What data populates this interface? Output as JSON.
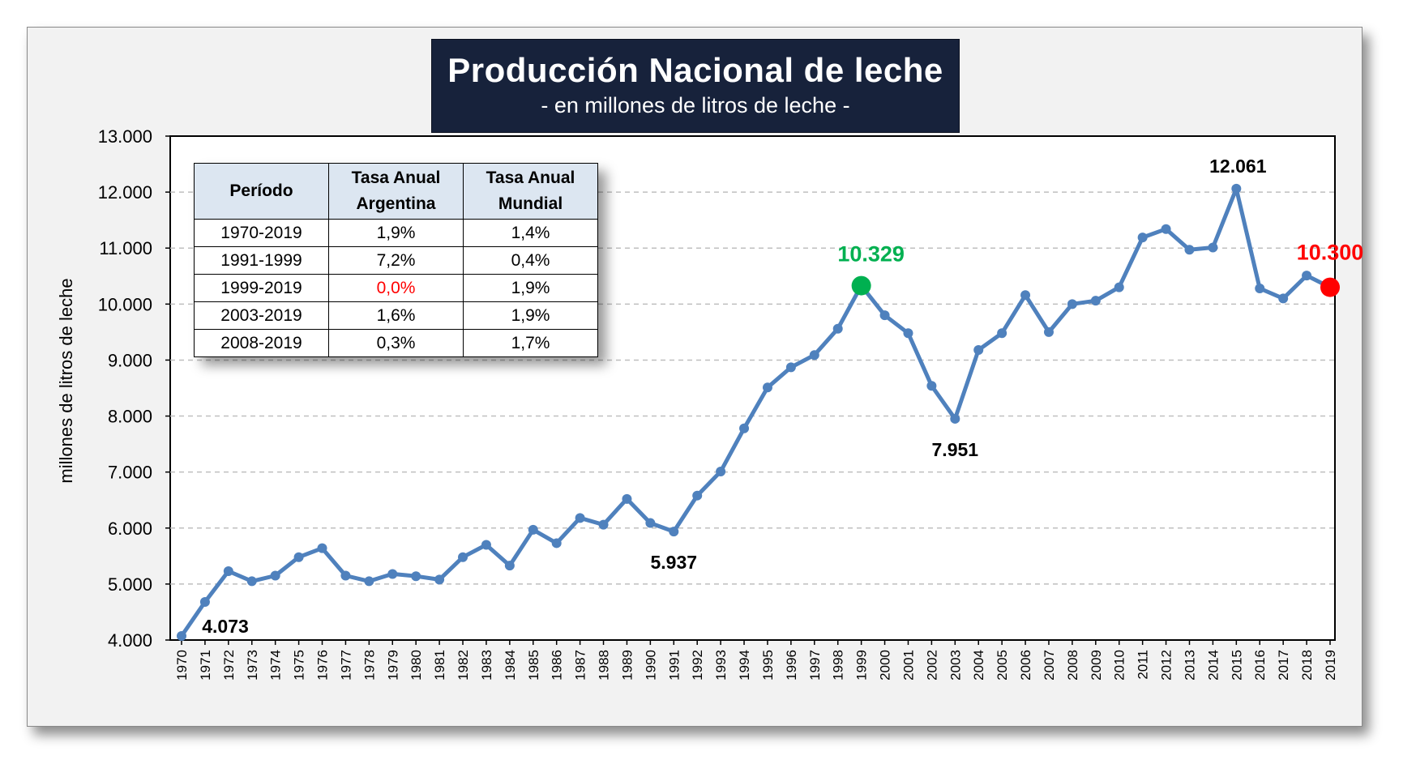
{
  "title": "Producción Nacional de leche",
  "subtitle": "- en millones de litros de leche -",
  "chart_data": {
    "type": "line",
    "ylabel": "millones de litros de leche",
    "xlabel": "",
    "ylim": [
      4000,
      13000
    ],
    "yticks": [
      4000,
      5000,
      6000,
      7000,
      8000,
      9000,
      10000,
      11000,
      12000,
      13000
    ],
    "ytick_labels": [
      "4.000",
      "5.000",
      "6.000",
      "7.000",
      "8.000",
      "9.000",
      "10.000",
      "11.000",
      "12.000",
      "13.000"
    ],
    "grid": "horizontal dashed",
    "line_color": "#4f81bd",
    "x": [
      "1970",
      "1971",
      "1972",
      "1973",
      "1974",
      "1975",
      "1976",
      "1977",
      "1978",
      "1979",
      "1980",
      "1981",
      "1982",
      "1983",
      "1984",
      "1985",
      "1986",
      "1987",
      "1988",
      "1989",
      "1990",
      "1991",
      "1992",
      "1993",
      "1994",
      "1995",
      "1996",
      "1997",
      "1998",
      "1999",
      "2000",
      "2001",
      "2002",
      "2003",
      "2004",
      "2005",
      "2006",
      "2007",
      "2008",
      "2009",
      "2010",
      "2011",
      "2012",
      "2013",
      "2014",
      "2015",
      "2016",
      "2017",
      "2018",
      "2019"
    ],
    "series": [
      {
        "values": [
          4073,
          4680,
          5230,
          5050,
          5150,
          5480,
          5640,
          5150,
          5050,
          5180,
          5140,
          5080,
          5480,
          5700,
          5330,
          5970,
          5730,
          6180,
          6060,
          6520,
          6090,
          5937,
          6580,
          7010,
          7780,
          8510,
          8870,
          9090,
          9560,
          10329,
          9800,
          9480,
          8540,
          7951,
          9180,
          9480,
          10160,
          9500,
          10000,
          10060,
          10300,
          11190,
          11340,
          10970,
          11010,
          12061,
          10280,
          10100,
          10510,
          10300
        ]
      }
    ],
    "annotations": [
      {
        "x": "1970",
        "label": "4.073",
        "color": "#000000"
      },
      {
        "x": "1991",
        "label": "5.937",
        "color": "#000000"
      },
      {
        "x": "1999",
        "label": "10.329",
        "color": "#00b050",
        "marker_color": "#00b050"
      },
      {
        "x": "2003",
        "label": "7.951",
        "color": "#000000"
      },
      {
        "x": "2015",
        "label": "12.061",
        "color": "#000000"
      },
      {
        "x": "2019",
        "label": "10.300",
        "color": "#ff0000",
        "marker_color": "#ff0000"
      }
    ]
  },
  "table": {
    "headers": [
      [
        "Período"
      ],
      [
        "Tasa Anual",
        "Argentina"
      ],
      [
        "Tasa Anual",
        "Mundial"
      ]
    ],
    "rows": [
      {
        "period": "1970-2019",
        "argentina": "1,9%",
        "mundial": "1,4%"
      },
      {
        "period": "1991-1999",
        "argentina": "7,2%",
        "mundial": "0,4%"
      },
      {
        "period": "1999-2019",
        "argentina": "0,0%",
        "mundial": "1,9%",
        "highlight_color": "#ff0000"
      },
      {
        "period": "2003-2019",
        "argentina": "1,6%",
        "mundial": "1,9%"
      },
      {
        "period": "2008-2019",
        "argentina": "0,3%",
        "mundial": "1,7%"
      }
    ]
  }
}
